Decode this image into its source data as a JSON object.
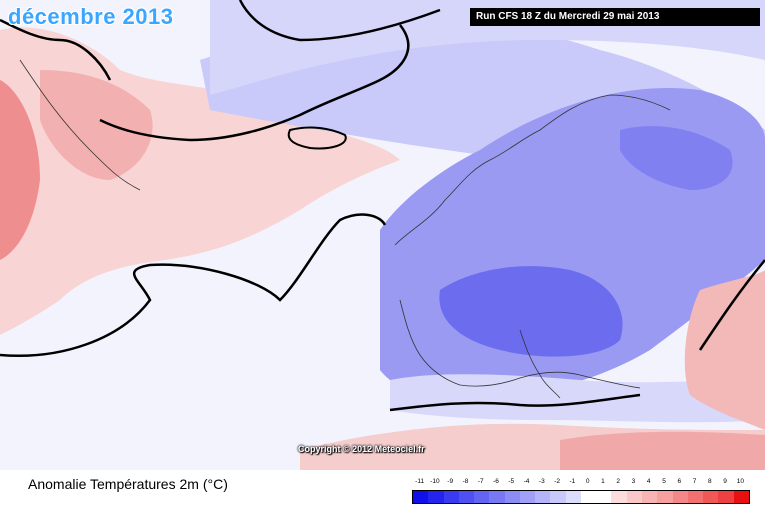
{
  "map": {
    "title": "décembre 2013",
    "run_info": "Run CFS 18 Z du Mercredi 29 mai 2013",
    "copyright": "Copyright © 2012 Meteociel.fr",
    "legend_title": "Anomalie Températures 2m (°C)",
    "scale": {
      "labels": [
        "-11",
        "-10",
        "-9",
        "-8",
        "-7",
        "-6",
        "-5",
        "-4",
        "-3",
        "-2",
        "-1",
        "0",
        "1",
        "2",
        "3",
        "4",
        "5",
        "6",
        "7",
        "8",
        "9",
        "10"
      ],
      "colors": [
        "#1010e8",
        "#2424ee",
        "#3a3af0",
        "#5050f2",
        "#6464f2",
        "#7878f4",
        "#8c8cf5",
        "#a0a0f6",
        "#b4b4f8",
        "#c8c8fa",
        "#dcdcfc",
        "#ffffff",
        "#ffffff",
        "#fcdcdc",
        "#fac8c8",
        "#f8b4b4",
        "#f6a0a0",
        "#f48888",
        "#f27070",
        "#f05858",
        "#ee4040",
        "#e81010"
      ]
    },
    "colors": {
      "land_blue": "#9696f2",
      "deep_blue": "#6a6aee",
      "ocean_blue": "#c6c6f9",
      "warm_pink": "#f5c0c0",
      "hot_red": "#ee7a7a"
    }
  }
}
